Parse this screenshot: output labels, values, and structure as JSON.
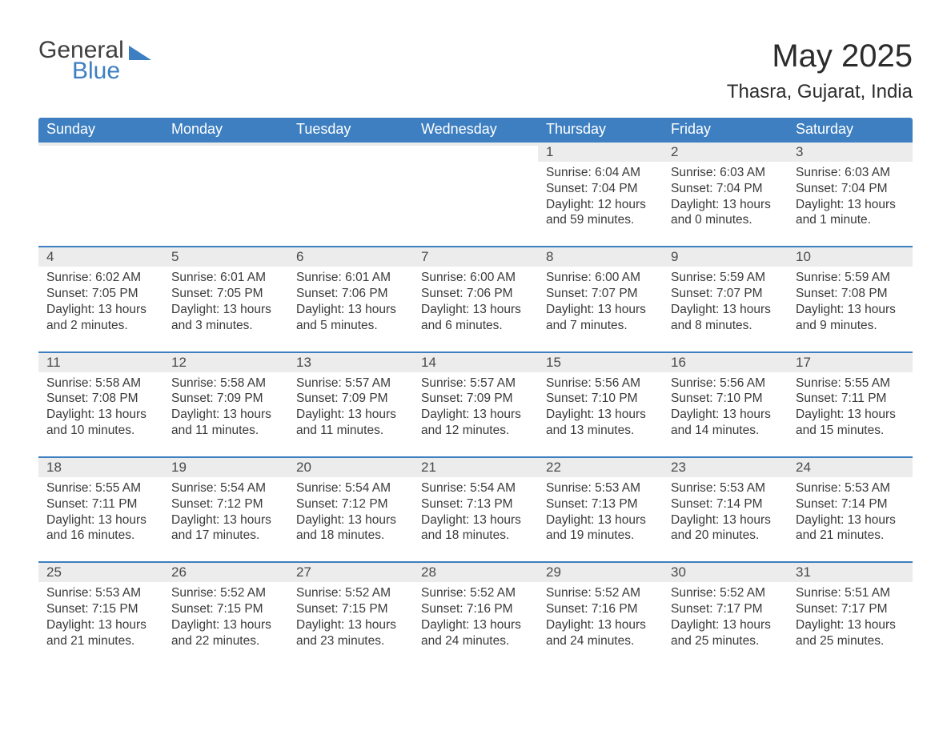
{
  "logo": {
    "word1": "General",
    "word2": "Blue"
  },
  "title": {
    "month": "May 2025",
    "location": "Thasra, Gujarat, India"
  },
  "colors": {
    "header_blue": "#3d7fc1",
    "daynum_bg": "#ececec",
    "text": "#3a3a3a",
    "white": "#ffffff"
  },
  "typography": {
    "title_fontsize": 40,
    "location_fontsize": 24,
    "weekday_fontsize": 18,
    "daynum_fontsize": 17,
    "body_fontsize": 15.5
  },
  "weekdays": [
    "Sunday",
    "Monday",
    "Tuesday",
    "Wednesday",
    "Thursday",
    "Friday",
    "Saturday"
  ],
  "weeks": [
    [
      {
        "empty": true
      },
      {
        "empty": true
      },
      {
        "empty": true
      },
      {
        "empty": true
      },
      {
        "day": "1",
        "sunrise": "Sunrise: 6:04 AM",
        "sunset": "Sunset: 7:04 PM",
        "daylight1": "Daylight: 12 hours",
        "daylight2": "and 59 minutes."
      },
      {
        "day": "2",
        "sunrise": "Sunrise: 6:03 AM",
        "sunset": "Sunset: 7:04 PM",
        "daylight1": "Daylight: 13 hours",
        "daylight2": "and 0 minutes."
      },
      {
        "day": "3",
        "sunrise": "Sunrise: 6:03 AM",
        "sunset": "Sunset: 7:04 PM",
        "daylight1": "Daylight: 13 hours",
        "daylight2": "and 1 minute."
      }
    ],
    [
      {
        "day": "4",
        "sunrise": "Sunrise: 6:02 AM",
        "sunset": "Sunset: 7:05 PM",
        "daylight1": "Daylight: 13 hours",
        "daylight2": "and 2 minutes."
      },
      {
        "day": "5",
        "sunrise": "Sunrise: 6:01 AM",
        "sunset": "Sunset: 7:05 PM",
        "daylight1": "Daylight: 13 hours",
        "daylight2": "and 3 minutes."
      },
      {
        "day": "6",
        "sunrise": "Sunrise: 6:01 AM",
        "sunset": "Sunset: 7:06 PM",
        "daylight1": "Daylight: 13 hours",
        "daylight2": "and 5 minutes."
      },
      {
        "day": "7",
        "sunrise": "Sunrise: 6:00 AM",
        "sunset": "Sunset: 7:06 PM",
        "daylight1": "Daylight: 13 hours",
        "daylight2": "and 6 minutes."
      },
      {
        "day": "8",
        "sunrise": "Sunrise: 6:00 AM",
        "sunset": "Sunset: 7:07 PM",
        "daylight1": "Daylight: 13 hours",
        "daylight2": "and 7 minutes."
      },
      {
        "day": "9",
        "sunrise": "Sunrise: 5:59 AM",
        "sunset": "Sunset: 7:07 PM",
        "daylight1": "Daylight: 13 hours",
        "daylight2": "and 8 minutes."
      },
      {
        "day": "10",
        "sunrise": "Sunrise: 5:59 AM",
        "sunset": "Sunset: 7:08 PM",
        "daylight1": "Daylight: 13 hours",
        "daylight2": "and 9 minutes."
      }
    ],
    [
      {
        "day": "11",
        "sunrise": "Sunrise: 5:58 AM",
        "sunset": "Sunset: 7:08 PM",
        "daylight1": "Daylight: 13 hours",
        "daylight2": "and 10 minutes."
      },
      {
        "day": "12",
        "sunrise": "Sunrise: 5:58 AM",
        "sunset": "Sunset: 7:09 PM",
        "daylight1": "Daylight: 13 hours",
        "daylight2": "and 11 minutes."
      },
      {
        "day": "13",
        "sunrise": "Sunrise: 5:57 AM",
        "sunset": "Sunset: 7:09 PM",
        "daylight1": "Daylight: 13 hours",
        "daylight2": "and 11 minutes."
      },
      {
        "day": "14",
        "sunrise": "Sunrise: 5:57 AM",
        "sunset": "Sunset: 7:09 PM",
        "daylight1": "Daylight: 13 hours",
        "daylight2": "and 12 minutes."
      },
      {
        "day": "15",
        "sunrise": "Sunrise: 5:56 AM",
        "sunset": "Sunset: 7:10 PM",
        "daylight1": "Daylight: 13 hours",
        "daylight2": "and 13 minutes."
      },
      {
        "day": "16",
        "sunrise": "Sunrise: 5:56 AM",
        "sunset": "Sunset: 7:10 PM",
        "daylight1": "Daylight: 13 hours",
        "daylight2": "and 14 minutes."
      },
      {
        "day": "17",
        "sunrise": "Sunrise: 5:55 AM",
        "sunset": "Sunset: 7:11 PM",
        "daylight1": "Daylight: 13 hours",
        "daylight2": "and 15 minutes."
      }
    ],
    [
      {
        "day": "18",
        "sunrise": "Sunrise: 5:55 AM",
        "sunset": "Sunset: 7:11 PM",
        "daylight1": "Daylight: 13 hours",
        "daylight2": "and 16 minutes."
      },
      {
        "day": "19",
        "sunrise": "Sunrise: 5:54 AM",
        "sunset": "Sunset: 7:12 PM",
        "daylight1": "Daylight: 13 hours",
        "daylight2": "and 17 minutes."
      },
      {
        "day": "20",
        "sunrise": "Sunrise: 5:54 AM",
        "sunset": "Sunset: 7:12 PM",
        "daylight1": "Daylight: 13 hours",
        "daylight2": "and 18 minutes."
      },
      {
        "day": "21",
        "sunrise": "Sunrise: 5:54 AM",
        "sunset": "Sunset: 7:13 PM",
        "daylight1": "Daylight: 13 hours",
        "daylight2": "and 18 minutes."
      },
      {
        "day": "22",
        "sunrise": "Sunrise: 5:53 AM",
        "sunset": "Sunset: 7:13 PM",
        "daylight1": "Daylight: 13 hours",
        "daylight2": "and 19 minutes."
      },
      {
        "day": "23",
        "sunrise": "Sunrise: 5:53 AM",
        "sunset": "Sunset: 7:14 PM",
        "daylight1": "Daylight: 13 hours",
        "daylight2": "and 20 minutes."
      },
      {
        "day": "24",
        "sunrise": "Sunrise: 5:53 AM",
        "sunset": "Sunset: 7:14 PM",
        "daylight1": "Daylight: 13 hours",
        "daylight2": "and 21 minutes."
      }
    ],
    [
      {
        "day": "25",
        "sunrise": "Sunrise: 5:53 AM",
        "sunset": "Sunset: 7:15 PM",
        "daylight1": "Daylight: 13 hours",
        "daylight2": "and 21 minutes."
      },
      {
        "day": "26",
        "sunrise": "Sunrise: 5:52 AM",
        "sunset": "Sunset: 7:15 PM",
        "daylight1": "Daylight: 13 hours",
        "daylight2": "and 22 minutes."
      },
      {
        "day": "27",
        "sunrise": "Sunrise: 5:52 AM",
        "sunset": "Sunset: 7:15 PM",
        "daylight1": "Daylight: 13 hours",
        "daylight2": "and 23 minutes."
      },
      {
        "day": "28",
        "sunrise": "Sunrise: 5:52 AM",
        "sunset": "Sunset: 7:16 PM",
        "daylight1": "Daylight: 13 hours",
        "daylight2": "and 24 minutes."
      },
      {
        "day": "29",
        "sunrise": "Sunrise: 5:52 AM",
        "sunset": "Sunset: 7:16 PM",
        "daylight1": "Daylight: 13 hours",
        "daylight2": "and 24 minutes."
      },
      {
        "day": "30",
        "sunrise": "Sunrise: 5:52 AM",
        "sunset": "Sunset: 7:17 PM",
        "daylight1": "Daylight: 13 hours",
        "daylight2": "and 25 minutes."
      },
      {
        "day": "31",
        "sunrise": "Sunrise: 5:51 AM",
        "sunset": "Sunset: 7:17 PM",
        "daylight1": "Daylight: 13 hours",
        "daylight2": "and 25 minutes."
      }
    ]
  ]
}
